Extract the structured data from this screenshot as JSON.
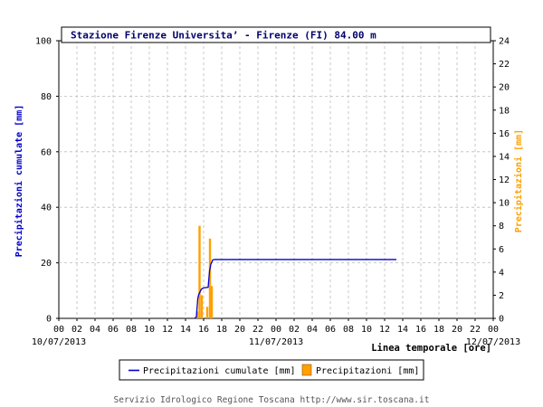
{
  "chart_data": {
    "type": "bar+line",
    "title": "Stazione Firenze Universita’ - Firenze (FI) 84.00 m",
    "xlabel": "Linea temporale [ore]",
    "ylabel_left": "Precipitazioni cumulate [mm]",
    "ylabel_right": "Precipitazioni [mm]",
    "ylim_left": [
      0,
      100
    ],
    "ylim_right": [
      0,
      24
    ],
    "y_ticks_left": [
      "0",
      "20",
      "40",
      "60",
      "80",
      "100"
    ],
    "y_ticks_right": [
      "0",
      "2",
      "4",
      "6",
      "8",
      "10",
      "12",
      "14",
      "16",
      "18",
      "20",
      "22",
      "24"
    ],
    "x_range_hours": [
      0,
      48
    ],
    "x_tick_labels": [
      "00",
      "02",
      "04",
      "06",
      "08",
      "10",
      "12",
      "14",
      "16",
      "18",
      "20",
      "22",
      "00",
      "02",
      "04",
      "06",
      "08",
      "10",
      "12",
      "14",
      "16",
      "18",
      "20",
      "22",
      "00"
    ],
    "date_labels": [
      {
        "hour": 0,
        "label": "10/07/2013"
      },
      {
        "hour": 24,
        "label": "11/07/2013"
      },
      {
        "hour": 48,
        "label": "12/07/2013"
      }
    ],
    "grid": true,
    "legend_position": "bottom-center",
    "series": [
      {
        "name": "Precipitazioni cumulate [mm]",
        "axis": "left",
        "type": "line",
        "color": "#0000cc",
        "points": [
          [
            15.0,
            0
          ],
          [
            15.2,
            0.5
          ],
          [
            15.35,
            7
          ],
          [
            15.45,
            8.5
          ],
          [
            15.6,
            9.5
          ],
          [
            15.75,
            10.5
          ],
          [
            16.0,
            11
          ],
          [
            16.5,
            11.2
          ],
          [
            16.65,
            17
          ],
          [
            16.8,
            19.5
          ],
          [
            17.0,
            21
          ],
          [
            17.2,
            21.2
          ],
          [
            20,
            21.2
          ],
          [
            25,
            21.2
          ],
          [
            30,
            21.2
          ],
          [
            37.3,
            21.2
          ]
        ]
      },
      {
        "name": "Precipitazioni [mm]",
        "axis": "right",
        "type": "bar",
        "color": "#ffa000",
        "points": [
          [
            15.3,
            0.6
          ],
          [
            15.55,
            8.0
          ],
          [
            15.8,
            2.0
          ],
          [
            16.4,
            1.0
          ],
          [
            16.7,
            6.9
          ],
          [
            16.9,
            2.8
          ]
        ]
      }
    ]
  },
  "footer": "Servizio Idrologico Regione Toscana http://www.sir.toscana.it",
  "colors": {
    "line": "#0000cc",
    "bar": "#ffa000",
    "title_text": "#00006e",
    "axis": "#000000",
    "grid": "#bbbbbb"
  }
}
